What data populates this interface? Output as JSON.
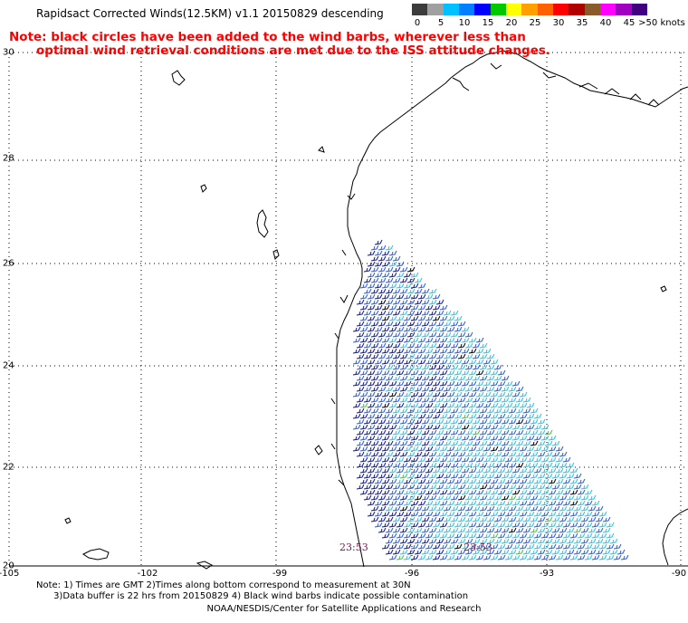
{
  "title": "Rapidsact Corrected Winds(12.5KM) v1.1 20150829 descending",
  "note": {
    "line1": "Note: black circles have been added to the wind barbs, wherever less than",
    "line2": "optimal wind retrieval conditions are met due to the ISS attitude changes."
  },
  "legend": {
    "unit": "knots",
    "labels": [
      "0",
      "5",
      "10",
      "15",
      "20",
      "25",
      "30",
      "35",
      "40",
      "45",
      ">50 knots"
    ],
    "colors": [
      "#3c3c3c",
      "#a0a0a0",
      "#00c0ff",
      "#0080ff",
      "#0000ff",
      "#00c800",
      "#ffff00",
      "#ffa000",
      "#ff6000",
      "#ff0000",
      "#b00000",
      "#8b5a2b",
      "#ff00ff",
      "#a000c0",
      "#400080"
    ]
  },
  "axes": {
    "lat_labels": [
      "30",
      "28",
      "26",
      "24",
      "22",
      "20"
    ],
    "lon_labels": [
      "-105",
      "-102",
      "-99",
      "-96",
      "-93",
      "-90"
    ]
  },
  "timestamps": [
    "23:53",
    "23:53"
  ],
  "footnote": "Note: 1) Times are GMT 2)Times along bottom correspond to measurement at 30N\n      3)Data buffer is 22 hrs from 20150829 4) Black wind barbs indicate possible contamination",
  "footer": "NOAA/NESDIS/Center for Satellite Applications and Research",
  "colors": {
    "note_red": "#ff0000",
    "timestamp": "#6b1a4f",
    "barb_dark_blue": "#0a14b4",
    "barb_blue": "#1e5aff",
    "barb_cyan": "#18c8f0",
    "barb_green": "#3cc83c",
    "barb_black": "#000000"
  }
}
